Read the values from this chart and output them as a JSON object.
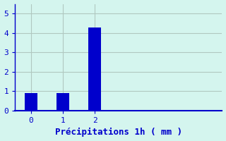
{
  "categories": [
    0,
    1,
    2
  ],
  "values": [
    0.9,
    0.9,
    4.3
  ],
  "bar_color": "#0000cc",
  "background_color": "#d4f5ee",
  "grid_color": "#b0c8c0",
  "axis_color": "#0000cc",
  "xlabel": "Précipitations 1h ( mm )",
  "xlabel_color": "#0000cc",
  "tick_color": "#0000cc",
  "ylim": [
    0,
    5.5
  ],
  "yticks": [
    0,
    1,
    2,
    3,
    4,
    5
  ],
  "xlim": [
    -0.5,
    6.0
  ],
  "bar_width": 0.4,
  "xlabel_fontsize": 9
}
